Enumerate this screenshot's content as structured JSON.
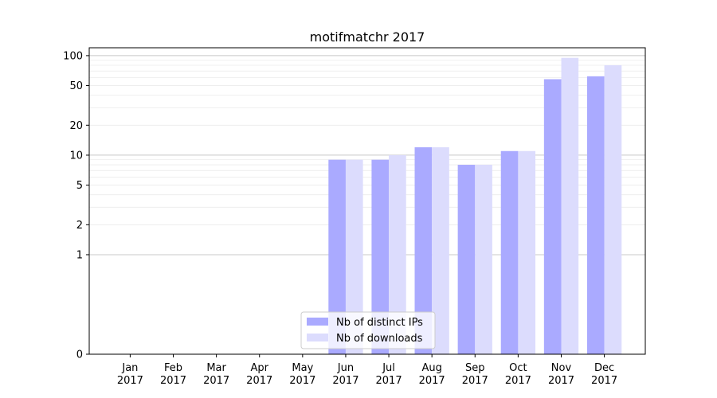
{
  "chart_data": {
    "type": "bar",
    "title": "motifmatchr 2017",
    "xlabel": "",
    "ylabel": "",
    "yscale": "symlog",
    "ylim": [
      0,
      120
    ],
    "categories": [
      "Jan\n2017",
      "Feb\n2017",
      "Mar\n2017",
      "Apr\n2017",
      "May\n2017",
      "Jun\n2017",
      "Jul\n2017",
      "Aug\n2017",
      "Sep\n2017",
      "Oct\n2017",
      "Nov\n2017",
      "Dec\n2017"
    ],
    "yticks": [
      0,
      1,
      2,
      5,
      10,
      20,
      50,
      100
    ],
    "ytick_labels": [
      "0",
      "1",
      "2",
      "5",
      "10",
      "20",
      "50",
      "100"
    ],
    "series": [
      {
        "name": "Nb of distinct IPs",
        "color": "#aaaaff",
        "values": [
          0,
          0,
          0,
          0,
          0,
          9,
          9,
          12,
          8,
          11,
          58,
          62
        ]
      },
      {
        "name": "Nb of downloads",
        "color": "#dcdcfd",
        "values": [
          0,
          0,
          0,
          0,
          0,
          9,
          10,
          12,
          8,
          11,
          95,
          80
        ]
      }
    ],
    "grid": "y",
    "legend": "lower-center"
  }
}
